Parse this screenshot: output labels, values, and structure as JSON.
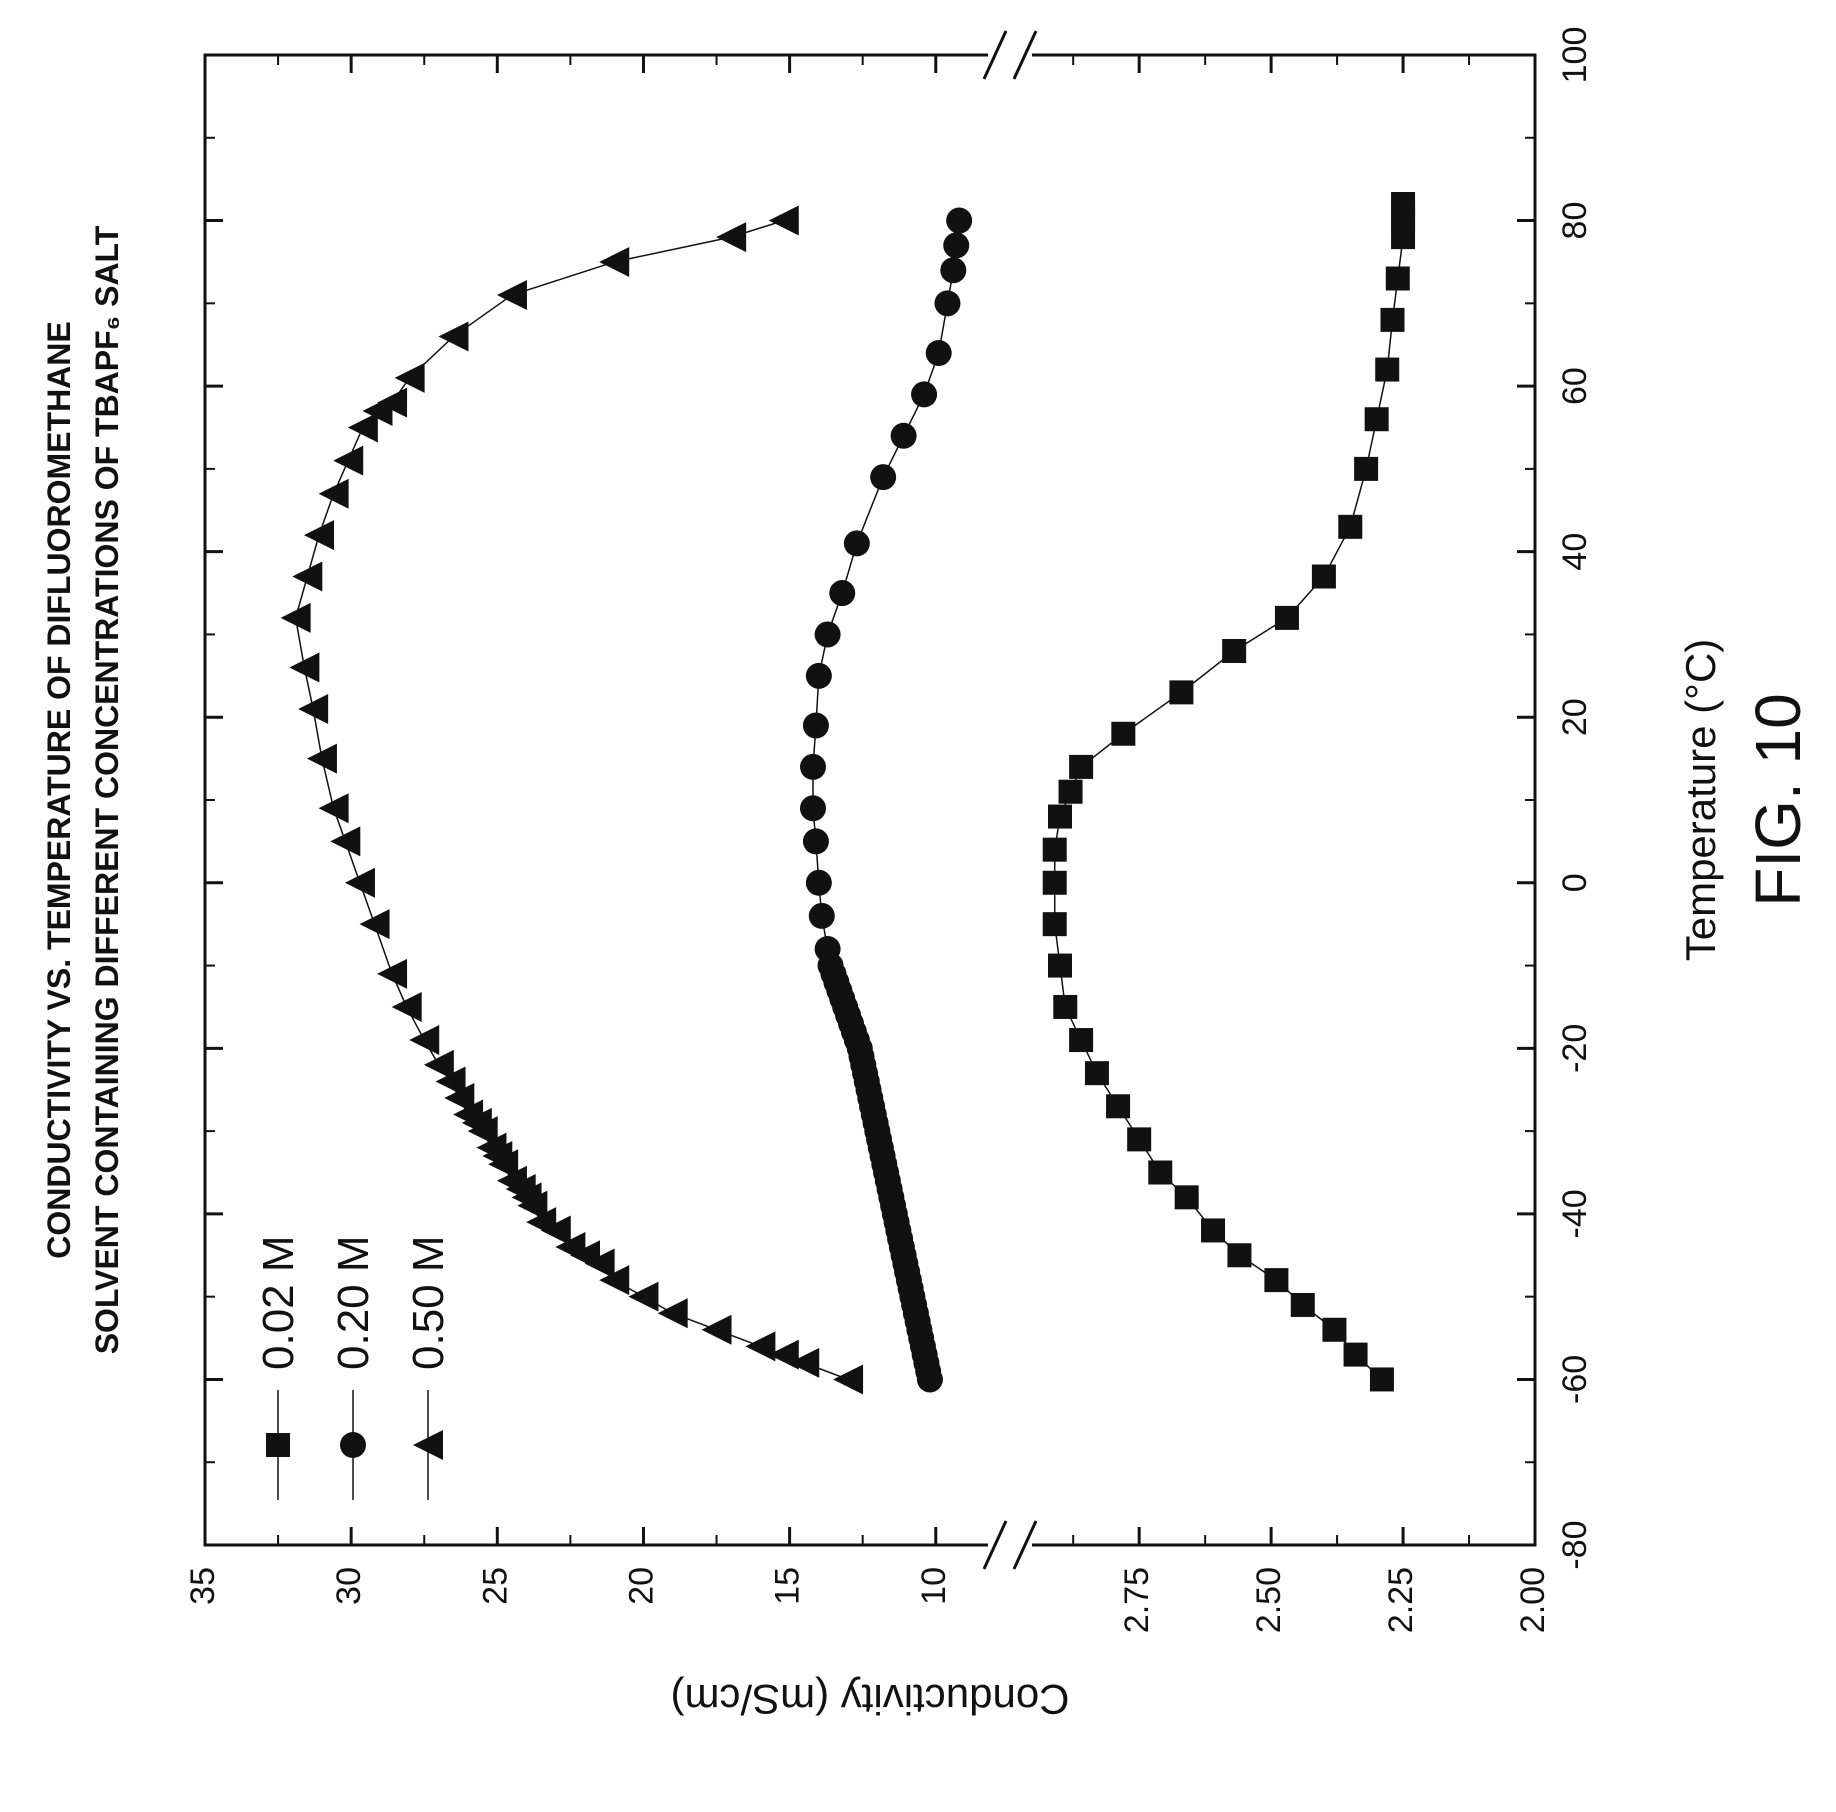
{
  "figure_label": "FIG. 10",
  "colors": {
    "ink": "#111111",
    "background": "#ffffff"
  },
  "chart_data": {
    "type": "scatter",
    "orientation": "rotated-90-clockwise",
    "title_lines": [
      "CONDUCTIVITY VS. TEMPERATURE OF DIFLUOROMETHANE",
      "SOLVENT CONTAINING DIFFERENT CONCENTRATIONS OF TBAPF₆ SALT"
    ],
    "xlabel": "Temperature (°C)",
    "ylabel": "Conductivity (mS/cm)",
    "xlim": [
      -80,
      100
    ],
    "x_ticks": [
      "-80",
      "-60",
      "-40",
      "-20",
      "0",
      "20",
      "40",
      "60",
      "80",
      "100"
    ],
    "broken_y_axis": true,
    "y_upper": {
      "range": [
        9,
        35
      ],
      "ticks": [
        "10",
        "15",
        "20",
        "25",
        "30",
        "35"
      ]
    },
    "y_lower": {
      "range": [
        2.0,
        2.9
      ],
      "ticks": [
        "2.00",
        "2.25",
        "2.50",
        "2.75"
      ]
    },
    "legend_position": "top-left",
    "series": [
      {
        "name": "0.02 M",
        "marker": "square",
        "axis": "lower",
        "x": [
          -60,
          -57,
          -54,
          -51,
          -48,
          -45,
          -42,
          -38,
          -35,
          -31,
          -27,
          -23,
          -19,
          -15,
          -10,
          -5,
          0,
          4,
          8,
          11,
          14,
          18,
          23,
          28,
          32,
          37,
          43,
          50,
          56,
          62,
          68,
          73,
          78,
          80,
          81,
          82
        ],
        "y": [
          2.29,
          2.34,
          2.38,
          2.44,
          2.49,
          2.56,
          2.61,
          2.66,
          2.71,
          2.75,
          2.79,
          2.83,
          2.86,
          2.89,
          2.9,
          2.91,
          2.91,
          2.91,
          2.9,
          2.88,
          2.86,
          2.78,
          2.67,
          2.57,
          2.47,
          2.4,
          2.35,
          2.32,
          2.3,
          2.28,
          2.27,
          2.26,
          2.25,
          2.25,
          2.25,
          2.25
        ]
      },
      {
        "name": "0.20 M",
        "marker": "circle",
        "axis": "upper",
        "x": [
          -60,
          -59,
          -58,
          -57,
          -56,
          -55,
          -54,
          -53,
          -52,
          -51,
          -50,
          -49,
          -48,
          -47,
          -46,
          -45,
          -44,
          -43,
          -42,
          -41,
          -40,
          -39,
          -38,
          -37,
          -36,
          -35,
          -34,
          -33,
          -32,
          -31,
          -30,
          -29,
          -28,
          -27,
          -26,
          -25,
          -24,
          -23,
          -22,
          -21,
          -20,
          -19,
          -18,
          -17,
          -16,
          -15,
          -14,
          -13,
          -12,
          -11,
          -10,
          -8,
          -4,
          0,
          5,
          9,
          14,
          19,
          25,
          30,
          35,
          41,
          49,
          54,
          59,
          64,
          70,
          74,
          77,
          80
        ],
        "y": [
          10.2,
          10.26,
          10.32,
          10.38,
          10.44,
          10.5,
          10.56,
          10.62,
          10.68,
          10.74,
          10.8,
          10.86,
          10.92,
          10.98,
          11.04,
          11.1,
          11.16,
          11.22,
          11.28,
          11.34,
          11.4,
          11.46,
          11.52,
          11.58,
          11.64,
          11.7,
          11.76,
          11.82,
          11.88,
          11.94,
          12.0,
          12.06,
          12.12,
          12.18,
          12.24,
          12.3,
          12.36,
          12.42,
          12.48,
          12.54,
          12.6,
          12.7,
          12.8,
          12.9,
          13.0,
          13.1,
          13.2,
          13.3,
          13.4,
          13.5,
          13.6,
          13.7,
          13.9,
          14.0,
          14.1,
          14.2,
          14.2,
          14.1,
          14.0,
          13.7,
          13.2,
          12.7,
          11.8,
          11.1,
          10.4,
          9.9,
          9.6,
          9.4,
          9.3,
          9.2
        ]
      },
      {
        "name": "0.50 M",
        "marker": "triangle",
        "axis": "upper",
        "x": [
          -60,
          -58,
          -57,
          -56,
          -54,
          -52,
          -50,
          -48,
          -46,
          -45,
          -44,
          -42,
          -41,
          -39,
          -38,
          -37,
          -36,
          -34,
          -33,
          -32,
          -30,
          -29,
          -28,
          -26,
          -24,
          -22,
          -19,
          -15,
          -11,
          -5,
          0,
          5,
          9,
          15,
          21,
          26,
          32,
          37,
          42,
          47,
          51,
          55,
          57,
          58,
          61,
          66,
          71,
          75,
          78,
          80
        ],
        "y": [
          13.0,
          14.5,
          15.2,
          16.0,
          17.5,
          19.0,
          20.0,
          21.0,
          21.5,
          22.0,
          22.5,
          23.0,
          23.5,
          23.8,
          24.0,
          24.2,
          24.5,
          24.8,
          25.0,
          25.2,
          25.5,
          25.7,
          26.0,
          26.3,
          26.6,
          27.0,
          27.5,
          28.1,
          28.6,
          29.2,
          29.7,
          30.2,
          30.6,
          31.0,
          31.3,
          31.6,
          31.9,
          31.5,
          31.1,
          30.6,
          30.1,
          29.6,
          29.1,
          28.6,
          28.0,
          26.5,
          24.5,
          21.0,
          17.0,
          15.2
        ]
      }
    ]
  }
}
